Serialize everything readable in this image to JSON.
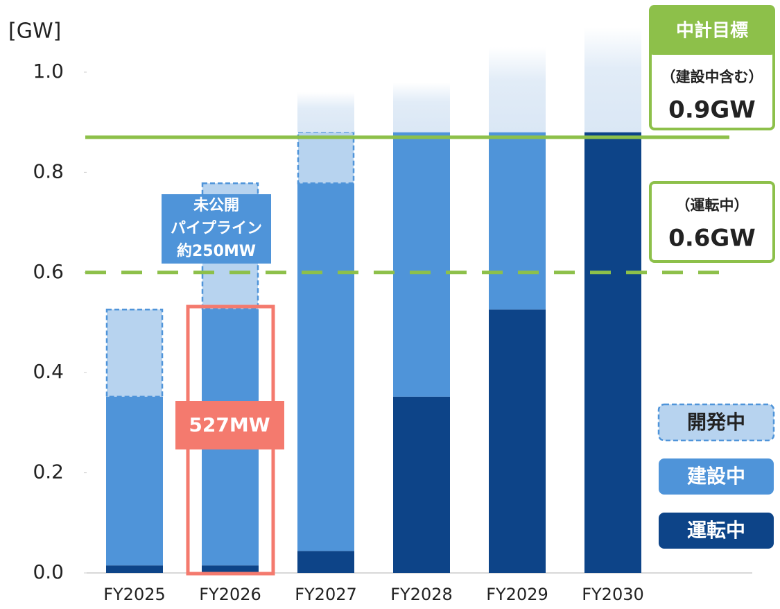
{
  "chart_data": {
    "type": "stacked_bar",
    "y_unit": "[GW]",
    "categories": [
      "FY2025",
      "FY2026",
      "FY2027",
      "FY2028",
      "FY2029",
      "FY2030"
    ],
    "series": [
      {
        "name": "運転中",
        "color": "#0d4488",
        "values": [
          0.015,
          0.015,
          0.044,
          0.352,
          0.526,
          0.88
        ]
      },
      {
        "name": "建設中",
        "color": "#4f94d9",
        "values": [
          0.337,
          0.512,
          0.734,
          0.528,
          0.354,
          0
        ]
      },
      {
        "name": "開発中",
        "color": "#b7d3ef",
        "border": "dashed",
        "values": [
          0.174,
          0.251,
          0.102,
          0,
          0,
          0
        ]
      }
    ],
    "upside": {
      "color": "#dae7f5",
      "values": [
        0,
        0,
        0.08,
        0.1,
        0.17,
        0.21
      ]
    },
    "ylim": [
      0,
      1.1
    ],
    "yticks": [
      {
        "value": 0,
        "label": "0.0"
      },
      0.2,
      0.4,
      0.6,
      0.8,
      {
        "value": 1,
        "label": "1.0"
      }
    ],
    "reference_lines": [
      {
        "value": 0.87,
        "color": "#8dc04a",
        "style": "solid"
      },
      {
        "value": 0.6,
        "color": "#8dc04a",
        "style": "dashed"
      }
    ],
    "targets": {
      "header": "中計目標",
      "items": [
        {
          "label": "（建設中含む）",
          "value": "0.9GW"
        },
        {
          "label": "（運転中）",
          "value": "0.6GW"
        }
      ]
    },
    "annotations": {
      "pipeline": [
        "未公開",
        "パイプライン",
        "約250MW"
      ],
      "highlight": "527MW"
    }
  }
}
